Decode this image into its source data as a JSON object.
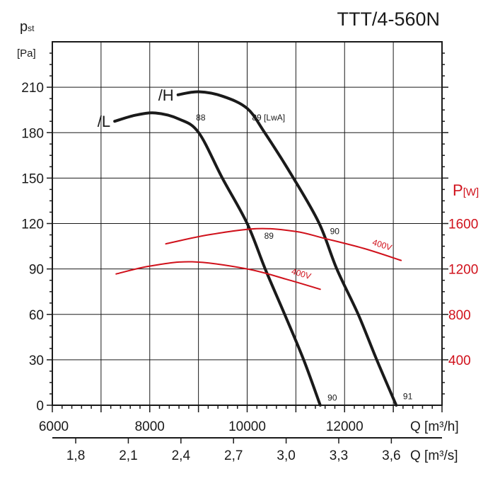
{
  "chart_data": {
    "type": "line",
    "title": "TTT/4-560N",
    "xlabel": "Q [m³/h]",
    "xlabel_secondary": "Q [m³/s]",
    "ylabel": "pst [Pa]",
    "ylabel_main": "p",
    "ylabel_sub": "st",
    "ylabel_unit": "[Pa]",
    "y2label_main": "P",
    "y2label_unit": "[W]",
    "xlim": [
      6000,
      14000
    ],
    "ylim": [
      0,
      240
    ],
    "y2lim": [
      0,
      3200
    ],
    "grid": true,
    "x_ticks": [
      6000,
      8000,
      10000,
      12000
    ],
    "x_ticks_labels": [
      "6000",
      "8000",
      "10000",
      "12000"
    ],
    "x_secondary_ticks": [
      "1,8",
      "2,1",
      "2,4",
      "2,7",
      "3,0",
      "3,3",
      "3,6"
    ],
    "y_ticks": [
      "0",
      "30",
      "60",
      "90",
      "120",
      "150",
      "180",
      "210"
    ],
    "y2_ticks": [
      "400",
      "800",
      "1200",
      "1600"
    ],
    "colors": {
      "pressure": "#1a1a1a",
      "power": "#d0111b"
    },
    "series": [
      {
        "name": "/L",
        "axis": "pressure",
        "points": [
          [
            7280,
            187.5
          ],
          [
            7700,
            191.5
          ],
          [
            8120,
            193
          ],
          [
            8600,
            189
          ],
          [
            9005,
            180
          ],
          [
            9490,
            150
          ],
          [
            10000,
            120
          ],
          [
            10370,
            90
          ],
          [
            10770,
            60
          ],
          [
            11160,
            30
          ],
          [
            11500,
            0
          ]
        ]
      },
      {
        "name": "/H",
        "axis": "pressure",
        "points": [
          [
            8580,
            205
          ],
          [
            9005,
            207
          ],
          [
            9500,
            204
          ],
          [
            10000,
            196
          ],
          [
            10360,
            180
          ],
          [
            10950,
            150
          ],
          [
            11480,
            120
          ],
          [
            11840,
            90
          ],
          [
            12280,
            60
          ],
          [
            12660,
            30
          ],
          [
            13060,
            0
          ]
        ]
      },
      {
        "name": "400V",
        "axis": "power",
        "points": [
          [
            7310,
            1156
          ],
          [
            8000,
            1225
          ],
          [
            8870,
            1263
          ],
          [
            10000,
            1200
          ],
          [
            10800,
            1110
          ],
          [
            11500,
            1021
          ]
        ]
      },
      {
        "name": "400V",
        "axis": "power",
        "points": [
          [
            8330,
            1421
          ],
          [
            9200,
            1500
          ],
          [
            10200,
            1555
          ],
          [
            11000,
            1530
          ],
          [
            11570,
            1471
          ],
          [
            12400,
            1380
          ],
          [
            13160,
            1275
          ]
        ]
      }
    ],
    "annotations": [
      {
        "text": "88",
        "x": 8950,
        "y": 188
      },
      {
        "text": "89 [LwA]",
        "x": 10100,
        "y": 188
      },
      {
        "text": "89",
        "x": 10350,
        "y": 110
      },
      {
        "text": "90",
        "x": 11700,
        "y": 113
      },
      {
        "text": "90",
        "x": 11650,
        "y": 3
      },
      {
        "text": "91",
        "x": 13200,
        "y": 4
      }
    ]
  }
}
